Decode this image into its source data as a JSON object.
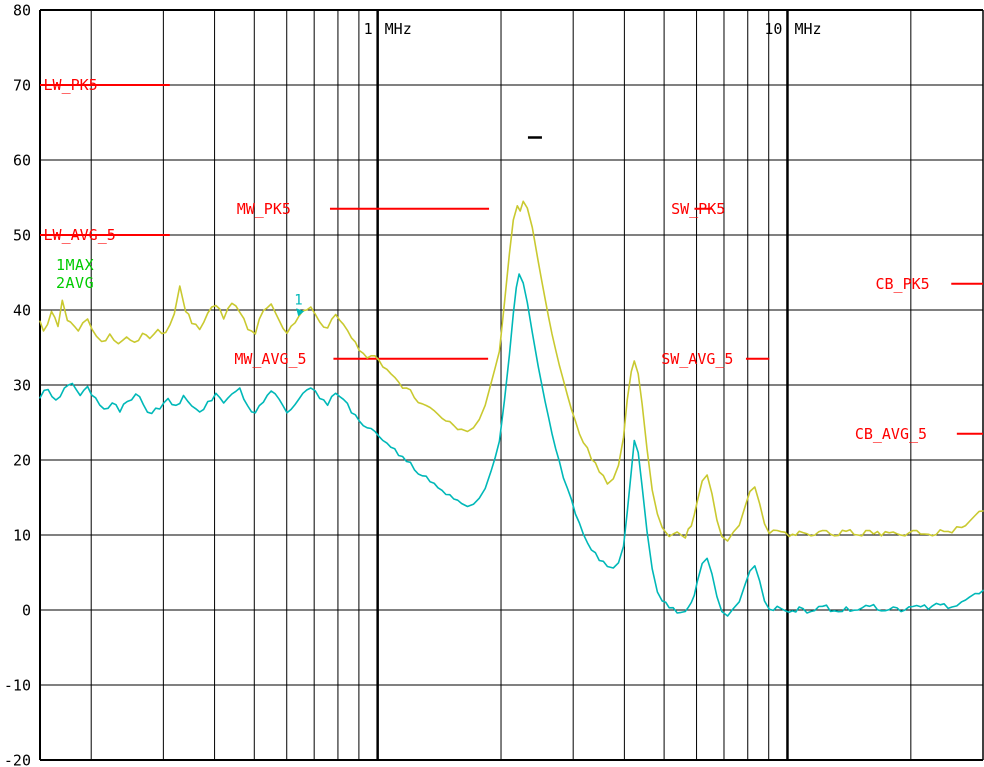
{
  "chart_data": {
    "type": "line",
    "title": "",
    "x_axis": {
      "scale": "log",
      "unit": "MHz",
      "min_mhz": 0.15,
      "max_mhz": 30,
      "labeled_ticks": [
        {
          "mhz": 1,
          "number": "1",
          "unit": "MHz"
        },
        {
          "mhz": 10,
          "number": "10",
          "unit": "MHz"
        }
      ],
      "gridline_mhz": [
        0.2,
        0.3,
        0.4,
        0.5,
        0.6,
        0.7,
        0.8,
        0.9,
        1,
        2,
        3,
        4,
        5,
        6,
        7,
        8,
        9,
        10,
        20,
        30
      ],
      "major_mhz": [
        1,
        10
      ]
    },
    "y_axis": {
      "min": -20,
      "max": 80,
      "step": 10,
      "tick_labels": [
        "80",
        "70",
        "60",
        "50",
        "40",
        "30",
        "20",
        "10",
        "0",
        "-10",
        "-20"
      ]
    },
    "legend": {
      "color": "#00cc00",
      "entries": [
        "1MAX",
        "2AVG"
      ]
    },
    "series": [
      {
        "name": "1MAX",
        "color": "#c9c930",
        "points": [
          [
            0.15,
            38.5
          ],
          [
            0.153,
            37.2
          ],
          [
            0.16,
            39.8
          ],
          [
            0.166,
            37.8
          ],
          [
            0.17,
            41.3
          ],
          [
            0.175,
            38.6
          ],
          [
            0.178,
            38.4
          ],
          [
            0.186,
            37.2
          ],
          [
            0.196,
            38.8
          ],
          [
            0.206,
            36.5
          ],
          [
            0.212,
            35.8
          ],
          [
            0.222,
            36.8
          ],
          [
            0.233,
            35.5
          ],
          [
            0.244,
            36.4
          ],
          [
            0.255,
            35.7
          ],
          [
            0.267,
            36.9
          ],
          [
            0.278,
            36.2
          ],
          [
            0.291,
            37.4
          ],
          [
            0.304,
            37.0
          ],
          [
            0.319,
            39.5
          ],
          [
            0.329,
            43.2
          ],
          [
            0.34,
            39.8
          ],
          [
            0.352,
            38.2
          ],
          [
            0.368,
            37.4
          ],
          [
            0.385,
            39.6
          ],
          [
            0.403,
            40.6
          ],
          [
            0.421,
            38.8
          ],
          [
            0.441,
            40.9
          ],
          [
            0.461,
            39.7
          ],
          [
            0.482,
            37.4
          ],
          [
            0.503,
            36.8
          ],
          [
            0.526,
            39.9
          ],
          [
            0.55,
            40.8
          ],
          [
            0.575,
            38.6
          ],
          [
            0.601,
            36.9
          ],
          [
            0.629,
            38.3
          ],
          [
            0.657,
            39.9
          ],
          [
            0.687,
            40.4
          ],
          [
            0.722,
            38.4
          ],
          [
            0.755,
            37.6
          ],
          [
            0.79,
            39.4
          ],
          [
            0.825,
            38.1
          ],
          [
            0.863,
            36.3
          ],
          [
            0.902,
            34.6
          ],
          [
            0.943,
            33.6
          ],
          [
            0.985,
            33.9
          ],
          [
            1.03,
            32.4
          ],
          [
            1.077,
            31.5
          ],
          [
            1.125,
            30.4
          ],
          [
            1.176,
            29.6
          ],
          [
            1.229,
            28.3
          ],
          [
            1.285,
            27.5
          ],
          [
            1.343,
            27.0
          ],
          [
            1.404,
            26.1
          ],
          [
            1.467,
            25.2
          ],
          [
            1.534,
            24.6
          ],
          [
            1.603,
            24.1
          ],
          [
            1.657,
            23.8
          ],
          [
            1.713,
            24.3
          ],
          [
            1.77,
            25.4
          ],
          [
            1.83,
            27.3
          ],
          [
            1.891,
            30.2
          ],
          [
            1.982,
            34.5
          ],
          [
            2.039,
            41.0
          ],
          [
            2.097,
            47.5
          ],
          [
            2.143,
            52.0
          ],
          [
            2.191,
            53.9
          ],
          [
            2.228,
            53.2
          ],
          [
            2.266,
            54.5
          ],
          [
            2.318,
            53.6
          ],
          [
            2.384,
            51.0
          ],
          [
            2.465,
            46.5
          ],
          [
            2.562,
            41.5
          ],
          [
            2.663,
            36.8
          ],
          [
            2.777,
            32.6
          ],
          [
            2.905,
            28.6
          ],
          [
            3.038,
            25.2
          ],
          [
            3.178,
            22.3
          ],
          [
            3.324,
            20.1
          ],
          [
            3.475,
            18.4
          ],
          [
            3.635,
            16.8
          ],
          [
            3.759,
            17.5
          ],
          [
            3.869,
            19.3
          ],
          [
            3.981,
            23.0
          ],
          [
            4.064,
            28.0
          ],
          [
            4.159,
            31.8
          ],
          [
            4.229,
            33.2
          ],
          [
            4.322,
            31.5
          ],
          [
            4.418,
            27.5
          ],
          [
            4.542,
            21.5
          ],
          [
            4.677,
            16.0
          ],
          [
            4.814,
            12.8
          ],
          [
            4.947,
            11.0
          ],
          [
            5.146,
            9.8
          ],
          [
            5.383,
            10.4
          ],
          [
            5.631,
            9.6
          ],
          [
            5.825,
            11.2
          ],
          [
            6.025,
            14.5
          ],
          [
            6.193,
            17.2
          ],
          [
            6.366,
            18.0
          ],
          [
            6.544,
            15.5
          ],
          [
            6.727,
            12.0
          ],
          [
            6.915,
            9.8
          ],
          [
            7.144,
            9.2
          ],
          [
            7.381,
            10.4
          ],
          [
            7.627,
            11.3
          ],
          [
            7.881,
            13.8
          ],
          [
            8.099,
            15.8
          ],
          [
            8.322,
            16.4
          ],
          [
            8.553,
            14.2
          ],
          [
            8.789,
            11.5
          ],
          [
            9.032,
            10.2
          ],
          [
            9.437,
            10.6
          ],
          [
            10.09,
            9.8
          ],
          [
            10.68,
            10.5
          ],
          [
            11.41,
            9.9
          ],
          [
            12.18,
            10.6
          ],
          [
            13.02,
            9.9
          ],
          [
            13.91,
            10.5
          ],
          [
            14.86,
            10.0
          ],
          [
            15.87,
            10.6
          ],
          [
            16.95,
            9.9
          ],
          [
            18.11,
            10.4
          ],
          [
            19.35,
            9.9
          ],
          [
            20.67,
            10.6
          ],
          [
            22.08,
            10.1
          ],
          [
            23.59,
            10.7
          ],
          [
            25.2,
            10.3
          ],
          [
            26.62,
            11.0
          ],
          [
            27.8,
            11.8
          ],
          [
            28.7,
            12.6
          ],
          [
            30.0,
            13.2
          ]
        ]
      },
      {
        "name": "2AVG",
        "color": "#00b8b8",
        "points": [
          [
            0.15,
            28.3
          ],
          [
            0.157,
            29.4
          ],
          [
            0.164,
            28.0
          ],
          [
            0.172,
            29.6
          ],
          [
            0.18,
            30.2
          ],
          [
            0.188,
            28.6
          ],
          [
            0.196,
            29.8
          ],
          [
            0.205,
            28.3
          ],
          [
            0.215,
            26.8
          ],
          [
            0.225,
            27.6
          ],
          [
            0.235,
            26.4
          ],
          [
            0.245,
            27.8
          ],
          [
            0.257,
            28.8
          ],
          [
            0.268,
            27.4
          ],
          [
            0.281,
            26.2
          ],
          [
            0.294,
            26.8
          ],
          [
            0.308,
            28.2
          ],
          [
            0.322,
            27.3
          ],
          [
            0.336,
            28.6
          ],
          [
            0.352,
            27.2
          ],
          [
            0.368,
            26.4
          ],
          [
            0.385,
            27.8
          ],
          [
            0.403,
            28.9
          ],
          [
            0.421,
            27.6
          ],
          [
            0.441,
            28.8
          ],
          [
            0.461,
            29.6
          ],
          [
            0.482,
            27.2
          ],
          [
            0.503,
            26.3
          ],
          [
            0.526,
            27.7
          ],
          [
            0.55,
            29.2
          ],
          [
            0.575,
            28.1
          ],
          [
            0.601,
            26.3
          ],
          [
            0.629,
            27.4
          ],
          [
            0.657,
            28.9
          ],
          [
            0.687,
            29.6
          ],
          [
            0.722,
            28.2
          ],
          [
            0.755,
            27.3
          ],
          [
            0.79,
            28.9
          ],
          [
            0.825,
            28.1
          ],
          [
            0.863,
            26.3
          ],
          [
            0.902,
            25.2
          ],
          [
            0.943,
            24.3
          ],
          [
            0.985,
            23.8
          ],
          [
            1.03,
            22.6
          ],
          [
            1.077,
            21.7
          ],
          [
            1.125,
            20.6
          ],
          [
            1.176,
            19.8
          ],
          [
            1.229,
            18.7
          ],
          [
            1.285,
            17.9
          ],
          [
            1.343,
            17.1
          ],
          [
            1.404,
            16.3
          ],
          [
            1.467,
            15.4
          ],
          [
            1.534,
            14.8
          ],
          [
            1.603,
            14.2
          ],
          [
            1.657,
            13.8
          ],
          [
            1.713,
            14.1
          ],
          [
            1.77,
            14.9
          ],
          [
            1.83,
            16.2
          ],
          [
            1.891,
            18.5
          ],
          [
            1.982,
            22.5
          ],
          [
            2.039,
            28.0
          ],
          [
            2.097,
            34.0
          ],
          [
            2.143,
            39.5
          ],
          [
            2.179,
            43.0
          ],
          [
            2.214,
            44.8
          ],
          [
            2.266,
            43.6
          ],
          [
            2.318,
            41.0
          ],
          [
            2.384,
            37.0
          ],
          [
            2.465,
            32.5
          ],
          [
            2.562,
            27.8
          ],
          [
            2.663,
            23.5
          ],
          [
            2.777,
            19.8
          ],
          [
            2.905,
            16.2
          ],
          [
            3.038,
            12.8
          ],
          [
            3.178,
            10.1
          ],
          [
            3.324,
            8.0
          ],
          [
            3.475,
            6.6
          ],
          [
            3.635,
            5.8
          ],
          [
            3.759,
            5.6
          ],
          [
            3.869,
            6.3
          ],
          [
            3.981,
            8.5
          ],
          [
            4.064,
            13.0
          ],
          [
            4.159,
            18.5
          ],
          [
            4.229,
            22.6
          ],
          [
            4.322,
            21.0
          ],
          [
            4.418,
            16.5
          ],
          [
            4.542,
            10.5
          ],
          [
            4.677,
            5.5
          ],
          [
            4.814,
            2.4
          ],
          [
            4.947,
            1.2
          ],
          [
            5.146,
            0.3
          ],
          [
            5.383,
            -0.4
          ],
          [
            5.631,
            -0.2
          ],
          [
            5.825,
            1.0
          ],
          [
            6.025,
            3.8
          ],
          [
            6.193,
            6.2
          ],
          [
            6.366,
            6.9
          ],
          [
            6.544,
            4.8
          ],
          [
            6.727,
            1.8
          ],
          [
            6.915,
            -0.2
          ],
          [
            7.144,
            -0.8
          ],
          [
            7.381,
            0.2
          ],
          [
            7.627,
            1.1
          ],
          [
            7.881,
            3.4
          ],
          [
            8.099,
            5.2
          ],
          [
            8.322,
            5.9
          ],
          [
            8.553,
            3.9
          ],
          [
            8.789,
            1.2
          ],
          [
            9.032,
            0.1
          ],
          [
            9.437,
            0.5
          ],
          [
            10.09,
            -0.3
          ],
          [
            10.68,
            0.4
          ],
          [
            11.41,
            -0.2
          ],
          [
            12.18,
            0.5
          ],
          [
            13.02,
            -0.1
          ],
          [
            13.91,
            0.4
          ],
          [
            14.86,
            0.0
          ],
          [
            15.87,
            0.5
          ],
          [
            16.95,
            -0.1
          ],
          [
            18.11,
            0.4
          ],
          [
            19.35,
            0.0
          ],
          [
            20.67,
            0.6
          ],
          [
            22.08,
            0.1
          ],
          [
            23.59,
            0.7
          ],
          [
            25.2,
            0.4
          ],
          [
            26.62,
            1.1
          ],
          [
            27.8,
            1.7
          ],
          [
            28.7,
            2.2
          ],
          [
            30.0,
            2.6
          ]
        ]
      }
    ],
    "limit_lines": [
      {
        "name": "LW_PK5",
        "level_db": 70,
        "from_mhz": 0.15,
        "to_mhz": 0.311,
        "label_mhz": 0.153
      },
      {
        "name": "LW_AVG_5",
        "level_db": 50,
        "from_mhz": 0.15,
        "to_mhz": 0.311,
        "label_mhz": 0.153
      },
      {
        "name": "MW_PK5",
        "level_db": 53.5,
        "from_mhz": 0.765,
        "to_mhz": 1.87,
        "label_mhz": 0.453
      },
      {
        "name": "MW_AVG_5",
        "level_db": 33.5,
        "from_mhz": 0.78,
        "to_mhz": 1.86,
        "label_mhz": 0.447
      },
      {
        "name": "SW_PK5",
        "level_db": 53.5,
        "from_mhz": 5.93,
        "to_mhz": 6.54,
        "label_mhz": 5.2
      },
      {
        "name": "SW_AVG_5",
        "level_db": 33.5,
        "from_mhz": 7.92,
        "to_mhz": 9.03,
        "label_mhz": 4.92
      },
      {
        "name": "CB_PK5",
        "level_db": 43.5,
        "from_mhz": 25.1,
        "to_mhz": 30,
        "label_mhz": 16.4
      },
      {
        "name": "CB_AVG_5",
        "level_db": 23.5,
        "from_mhz": 25.9,
        "to_mhz": 30,
        "label_mhz": 14.6
      }
    ],
    "markers": [
      {
        "kind": "number",
        "label": "1",
        "mhz": 0.64,
        "db": 41.3,
        "color": "#00b8b8"
      },
      {
        "kind": "dash",
        "label": "-",
        "mhz": 2.42,
        "db": 63,
        "color": "#000000"
      }
    ],
    "colors": {
      "background": "#ffffff",
      "grid": "#000000",
      "limit": "#ff0000",
      "legend": "#00cc00",
      "trace_max": "#c9c930",
      "trace_avg": "#00b8b8"
    }
  }
}
